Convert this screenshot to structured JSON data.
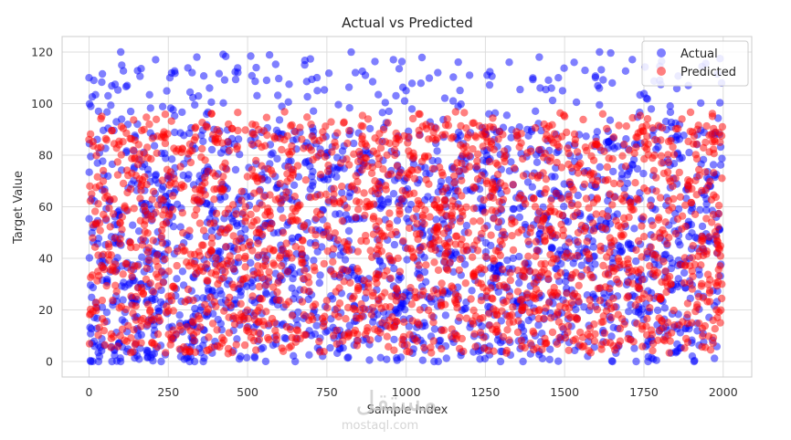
{
  "chart_data": {
    "type": "scatter",
    "title": "Actual vs Predicted",
    "xlabel": "Sample Index",
    "ylabel": "Target Value",
    "xlim": [
      -85,
      2090
    ],
    "ylim": [
      -6,
      126
    ],
    "xticks": [
      0,
      250,
      500,
      750,
      1000,
      1250,
      1500,
      1750,
      2000
    ],
    "yticks": [
      0,
      20,
      40,
      60,
      80,
      100,
      120
    ],
    "grid": true,
    "legend": "top-right",
    "n_points": 2000,
    "series": [
      {
        "name": "Actual",
        "color": "#0000ff",
        "alpha": 0.5,
        "distribution": {
          "x_range": [
            0,
            1999
          ],
          "y_range": [
            0,
            120
          ],
          "bulk_range": [
            0,
            90
          ],
          "outlier_range": [
            90,
            120
          ],
          "outlier_fraction": 0.08,
          "zero_fraction": 0.01
        },
        "sample_points": [
          [
            0,
            110
          ],
          [
            15,
            109
          ],
          [
            30,
            97
          ],
          [
            60,
            103
          ],
          [
            100,
            120
          ],
          [
            120,
            107
          ],
          [
            210,
            117
          ],
          [
            255,
            110
          ],
          [
            340,
            118
          ],
          [
            380,
            106
          ],
          [
            560,
            109
          ],
          [
            680,
            115
          ],
          [
            720,
            105
          ],
          [
            840,
            112
          ],
          [
            960,
            117
          ],
          [
            1000,
            105
          ],
          [
            1100,
            112
          ],
          [
            1200,
            111
          ],
          [
            1420,
            118
          ],
          [
            1480,
            110
          ],
          [
            1530,
            116
          ],
          [
            1610,
            120
          ],
          [
            1650,
            108
          ],
          [
            1800,
            109
          ],
          [
            1890,
            107
          ],
          [
            1995,
            108
          ]
        ]
      },
      {
        "name": "Predicted",
        "color": "#ff0000",
        "alpha": 0.5,
        "distribution": {
          "x_range": [
            0,
            1999
          ],
          "y_range": [
            3,
            97
          ],
          "bulk_range": [
            3,
            92
          ],
          "outlier_range": [
            92,
            97
          ],
          "outlier_fraction": 0.02,
          "zero_fraction": 0
        },
        "sample_points": [
          [
            0,
            86
          ],
          [
            40,
            95
          ],
          [
            190,
            92
          ],
          [
            440,
            92
          ],
          [
            700,
            92
          ],
          [
            880,
            94
          ],
          [
            1040,
            96
          ],
          [
            1130,
            94
          ],
          [
            1500,
            95
          ],
          [
            1620,
            96
          ],
          [
            1870,
            94
          ],
          [
            1990,
            85
          ]
        ]
      }
    ]
  },
  "watermark": {
    "arabic": "مستقل",
    "latin": "mostaql.com"
  }
}
